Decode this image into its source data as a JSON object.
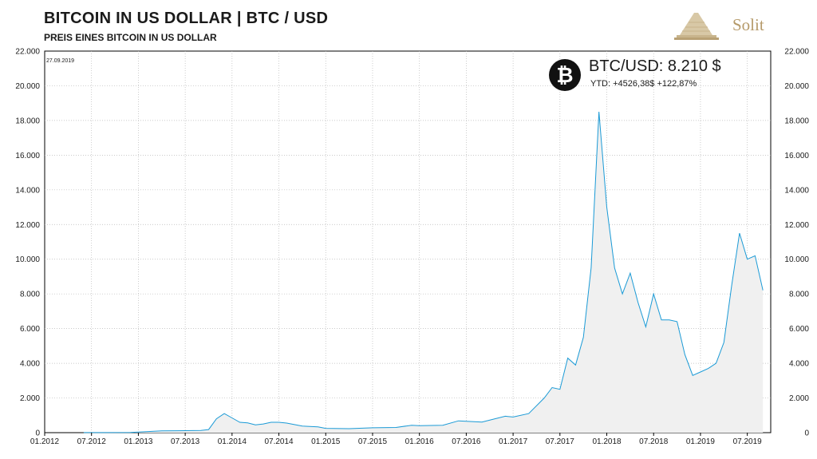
{
  "header": {
    "title": "BITCOIN IN US DOLLAR  |  BTC / USD",
    "subtitle": "PREIS  EINES  BITCOIN IN US DOLLAR",
    "brand": "Solit"
  },
  "info": {
    "icon": "bitcoin-icon",
    "icon_glyph": "₿",
    "pair": "BTC/USD: 8.210 $",
    "ytd": "YTD:   +4526,38$  +122,87%"
  },
  "chart_data": {
    "type": "area",
    "title": "BITCOIN IN US DOLLAR | BTC / USD",
    "subtitle": "PREIS EINES BITCOIN IN US DOLLAR",
    "date_label": "27.09.2019",
    "xlabel": "",
    "ylabel": "",
    "ylim": [
      0,
      22000
    ],
    "yticks": [
      0,
      2000,
      4000,
      6000,
      8000,
      10000,
      12000,
      14000,
      16000,
      18000,
      20000,
      22000
    ],
    "ytick_labels": [
      "0",
      "2.000",
      "4.000",
      "6.000",
      "8.000",
      "10.000",
      "12.000",
      "14.000",
      "16.000",
      "18.000",
      "20.000",
      "22.000"
    ],
    "xlim": [
      "2012-01",
      "2019-10"
    ],
    "xticks": [
      "2012-01",
      "2012-07",
      "2013-01",
      "2013-07",
      "2014-01",
      "2014-07",
      "2015-01",
      "2015-07",
      "2016-01",
      "2016-07",
      "2017-01",
      "2017-07",
      "2018-01",
      "2018-07",
      "2019-01",
      "2019-07"
    ],
    "xtick_labels": [
      "01.2012",
      "07.2012",
      "01.2013",
      "07.2013",
      "01.2014",
      "07.2014",
      "01.2015",
      "07.2015",
      "01.2016",
      "07.2016",
      "01.2017",
      "07.2017",
      "01.2018",
      "07.2018",
      "01.2019",
      "07.2019"
    ],
    "grid": true,
    "line_color": "#1a9ad6",
    "fill_color": "#f0f0f0",
    "series": [
      {
        "x": [
          "2012-06",
          "2012-12",
          "2013-04",
          "2013-06",
          "2013-09",
          "2013-10",
          "2013-11",
          "2013-12",
          "2014-01",
          "2014-02",
          "2014-03",
          "2014-04",
          "2014-05",
          "2014-06",
          "2014-07",
          "2014-08",
          "2014-10",
          "2014-12",
          "2015-01",
          "2015-04",
          "2015-07",
          "2015-10",
          "2015-12",
          "2016-01",
          "2016-04",
          "2016-06",
          "2016-09",
          "2016-12",
          "2017-01",
          "2017-03",
          "2017-05",
          "2017-06",
          "2017-07",
          "2017-08",
          "2017-09",
          "2017-10",
          "2017-11",
          "2017-12",
          "2018-01",
          "2018-02",
          "2018-03",
          "2018-04",
          "2018-05",
          "2018-06",
          "2018-07",
          "2018-08",
          "2018-09",
          "2018-10",
          "2018-11",
          "2018-12",
          "2019-01",
          "2019-02",
          "2019-03",
          "2019-04",
          "2019-05",
          "2019-06",
          "2019-07",
          "2019-08",
          "2019-09"
        ],
        "values": [
          6,
          13,
          100,
          110,
          130,
          180,
          800,
          1100,
          850,
          600,
          560,
          450,
          500,
          600,
          600,
          550,
          380,
          330,
          250,
          230,
          280,
          300,
          430,
          400,
          430,
          680,
          610,
          950,
          900,
          1100,
          2000,
          2600,
          2500,
          4300,
          3900,
          5500,
          9500,
          18500,
          13000,
          9500,
          8000,
          9200,
          7500,
          6100,
          8000,
          6500,
          6500,
          6400,
          4500,
          3300,
          3500,
          3700,
          4000,
          5200,
          8500,
          11500,
          10000,
          10200,
          8210
        ]
      }
    ]
  }
}
